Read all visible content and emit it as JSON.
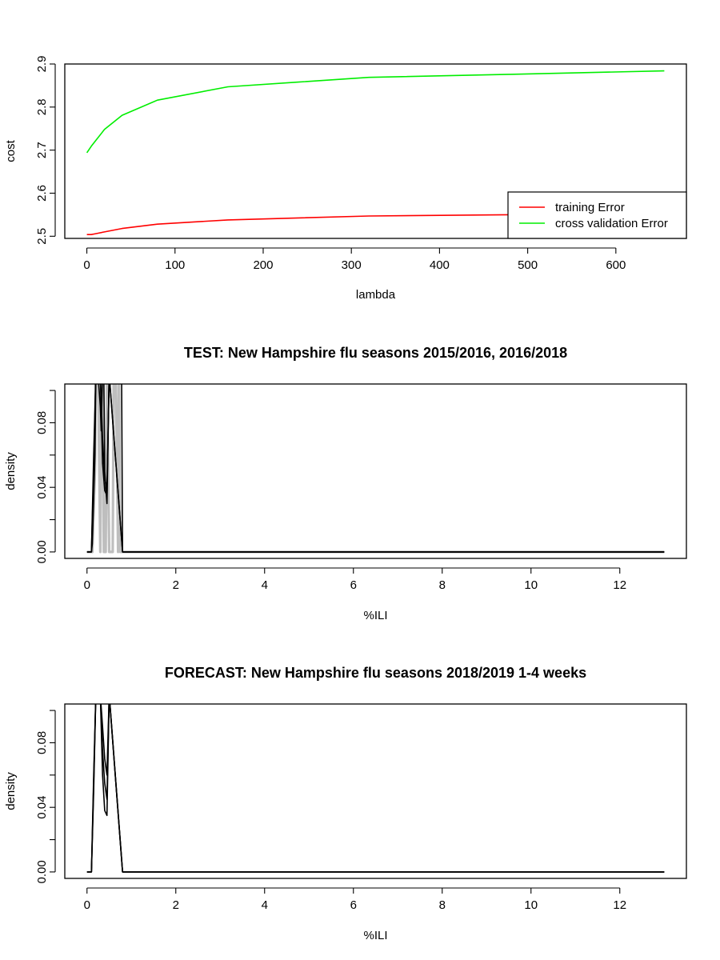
{
  "chart_data": [
    {
      "type": "line",
      "title": "",
      "xlabel": "lambda",
      "ylabel": "cost",
      "xlim": [
        -25,
        680
      ],
      "ylim": [
        2.495,
        2.9
      ],
      "x_ticks": [
        0,
        100,
        200,
        300,
        400,
        500,
        600
      ],
      "y_ticks": [
        2.5,
        2.6,
        2.7,
        2.8,
        2.9
      ],
      "x_tick_labels": [
        "0",
        "100",
        "200",
        "300",
        "400",
        "500",
        "600"
      ],
      "y_tick_labels": [
        "2.5",
        "2.6",
        "2.7",
        "2.8",
        "2.9"
      ],
      "legend": {
        "position": "bottom-right",
        "entries": [
          "training Error",
          "cross validation Error"
        ]
      },
      "series": [
        {
          "name": "training Error",
          "color": "#ff0000",
          "x": [
            0,
            5,
            10,
            20,
            40,
            80,
            160,
            320,
            480,
            640,
            655
          ],
          "y": [
            2.504,
            2.504,
            2.506,
            2.51,
            2.518,
            2.528,
            2.538,
            2.547,
            2.55,
            2.552,
            2.552
          ]
        },
        {
          "name": "cross validation Error",
          "color": "#00ee00",
          "x": [
            0,
            5,
            10,
            20,
            40,
            80,
            160,
            240,
            320,
            480,
            655
          ],
          "y": [
            2.694,
            2.709,
            2.722,
            2.748,
            2.781,
            2.816,
            2.847,
            2.858,
            2.869,
            2.876,
            2.884
          ]
        }
      ]
    },
    {
      "type": "line",
      "title": "TEST: New Hampshire  flu seasons 2015/2016, 2016/2018",
      "xlabel": "%ILI",
      "ylabel": "density",
      "xlim": [
        -0.5,
        13.5
      ],
      "ylim": [
        -0.004,
        0.104
      ],
      "x_ticks": [
        0,
        2,
        4,
        6,
        8,
        10,
        12
      ],
      "y_ticks": [
        0,
        0.02,
        0.04,
        0.06,
        0.08,
        0.1
      ],
      "x_tick_labels": [
        "0",
        "2",
        "4",
        "6",
        "8",
        "10",
        "12"
      ],
      "y_tick_labels": [
        "0.00",
        "",
        "0.04",
        "",
        "0.08",
        ""
      ],
      "series": [
        {
          "color": "#bebebe",
          "x": [
            0.0,
            0.1,
            0.12,
            0.18,
            0.2,
            0.25,
            0.3,
            0.32,
            0.35,
            0.38,
            0.42,
            0.45,
            0.5,
            0.58,
            0.6,
            0.65,
            0.7,
            0.72,
            0.75,
            0.8,
            13.0
          ],
          "y": [
            0,
            0,
            0,
            0.05,
            0.11,
            0.11,
            0,
            0.11,
            0.11,
            0,
            0,
            0.11,
            0,
            0,
            0.11,
            0.11,
            0,
            0.11,
            0,
            0,
            0
          ]
        },
        {
          "color": "#000000",
          "x": [
            0.0,
            0.1,
            0.12,
            0.18,
            0.2,
            0.25,
            0.3,
            0.32,
            0.35,
            0.38,
            0.4,
            0.45,
            0.5,
            0.55,
            0.6,
            0.65,
            0.7,
            0.75,
            0.78,
            0.8,
            13.0
          ],
          "y": [
            0,
            0,
            0.005,
            0.06,
            0.11,
            0.11,
            0.09,
            0.075,
            0.11,
            0.11,
            0.05,
            0.03,
            0.11,
            0.11,
            0.11,
            0.11,
            0.11,
            0.11,
            0.11,
            0,
            0
          ]
        },
        {
          "color": "#000000",
          "x": [
            0.0,
            0.1,
            0.15,
            0.2,
            0.25,
            0.3,
            0.35,
            0.4,
            0.45,
            0.5,
            0.8,
            13.0
          ],
          "y": [
            0,
            0,
            0.06,
            0.11,
            0.11,
            0.11,
            0.055,
            0.038,
            0.035,
            0.11,
            0,
            0
          ]
        },
        {
          "color": "#000000",
          "x": [
            0.0,
            0.1,
            0.15,
            0.2,
            0.25,
            0.3,
            0.35,
            0.4,
            0.45,
            0.5,
            0.8,
            13.0
          ],
          "y": [
            0,
            0,
            0.05,
            0.11,
            0.11,
            0.11,
            0.07,
            0.045,
            0.04,
            0.11,
            0,
            0
          ]
        }
      ]
    },
    {
      "type": "line",
      "title": "FORECAST: New Hampshire flu seasons 2018/2019 1-4 weeks",
      "xlabel": "%ILI",
      "ylabel": "density",
      "xlim": [
        -0.5,
        13.5
      ],
      "ylim": [
        -0.004,
        0.104
      ],
      "x_ticks": [
        0,
        2,
        4,
        6,
        8,
        10,
        12
      ],
      "y_ticks": [
        0,
        0.02,
        0.04,
        0.06,
        0.08,
        0.1
      ],
      "x_tick_labels": [
        "0",
        "2",
        "4",
        "6",
        "8",
        "10",
        "12"
      ],
      "y_tick_labels": [
        "0.00",
        "",
        "0.04",
        "",
        "0.08",
        ""
      ],
      "series": [
        {
          "color": "#000000",
          "x": [
            0.0,
            0.1,
            0.15,
            0.2,
            0.25,
            0.3,
            0.35,
            0.4,
            0.45,
            0.5,
            0.8,
            13.0
          ],
          "y": [
            0,
            0,
            0.05,
            0.11,
            0.11,
            0.11,
            0.09,
            0.07,
            0.06,
            0.11,
            0,
            0
          ]
        },
        {
          "color": "#000000",
          "x": [
            0.0,
            0.1,
            0.15,
            0.2,
            0.25,
            0.3,
            0.35,
            0.4,
            0.45,
            0.5,
            0.8,
            13.0
          ],
          "y": [
            0,
            0,
            0.055,
            0.11,
            0.11,
            0.11,
            0.06,
            0.038,
            0.035,
            0.11,
            0,
            0
          ]
        },
        {
          "color": "#000000",
          "x": [
            0.0,
            0.1,
            0.15,
            0.2,
            0.25,
            0.3,
            0.35,
            0.4,
            0.45,
            0.5,
            0.8,
            13.0
          ],
          "y": [
            0,
            0,
            0.06,
            0.11,
            0.11,
            0.11,
            0.075,
            0.055,
            0.045,
            0.11,
            0,
            0
          ]
        }
      ]
    }
  ]
}
